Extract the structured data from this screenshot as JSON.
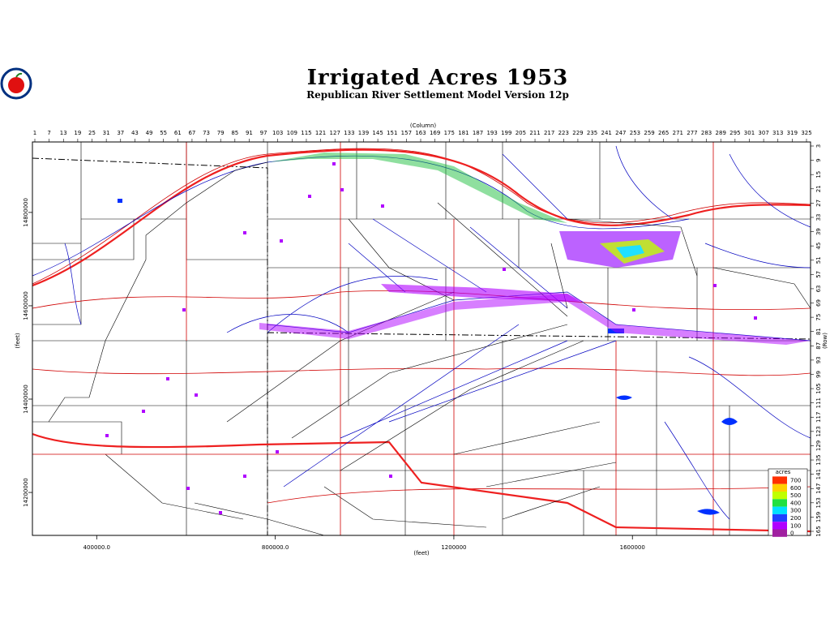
{
  "title": "Irrigated Acres 1953",
  "subtitle": "Republican River Settlement Model Version 12p",
  "top_axis": {
    "label": "(Column)",
    "ticks": [
      1,
      7,
      13,
      19,
      25,
      31,
      37,
      43,
      49,
      55,
      61,
      67,
      73,
      79,
      85,
      91,
      97,
      103,
      109,
      115,
      121,
      127,
      133,
      139,
      145,
      151,
      157,
      163,
      169,
      175,
      181,
      187,
      193,
      199,
      205,
      211,
      217,
      223,
      229,
      235,
      241,
      247,
      253,
      259,
      265,
      271,
      277,
      283,
      289,
      295,
      301,
      307,
      313,
      319,
      325
    ]
  },
  "right_axis": {
    "label": "(Row)",
    "ticks": [
      3,
      9,
      15,
      21,
      27,
      33,
      39,
      45,
      51,
      57,
      63,
      69,
      75,
      81,
      87,
      93,
      99,
      105,
      111,
      117,
      123,
      129,
      135,
      141,
      147,
      153,
      159,
      165
    ]
  },
  "x_axis": {
    "label": "(feet)",
    "xlim": [
      256000,
      1999000
    ],
    "ticks": [
      {
        "value": 400000,
        "label": "400000.0"
      },
      {
        "value": 800000,
        "label": "800000.0"
      },
      1200000,
      1600000
    ]
  },
  "y_axis": {
    "label": "(feet)",
    "ylim": [
      14108000,
      14951000
    ],
    "ticks": [
      14200000,
      14400000,
      14600000,
      14800000
    ]
  },
  "legend": {
    "title": "acres",
    "values": [
      700,
      600,
      500,
      400,
      300,
      200,
      100,
      0
    ],
    "colors": [
      "#ff3000",
      "#ffd000",
      "#c0ff00",
      "#20e040",
      "#00e0ff",
      "#2040ff",
      "#b000ff",
      "#a020a0"
    ]
  }
}
